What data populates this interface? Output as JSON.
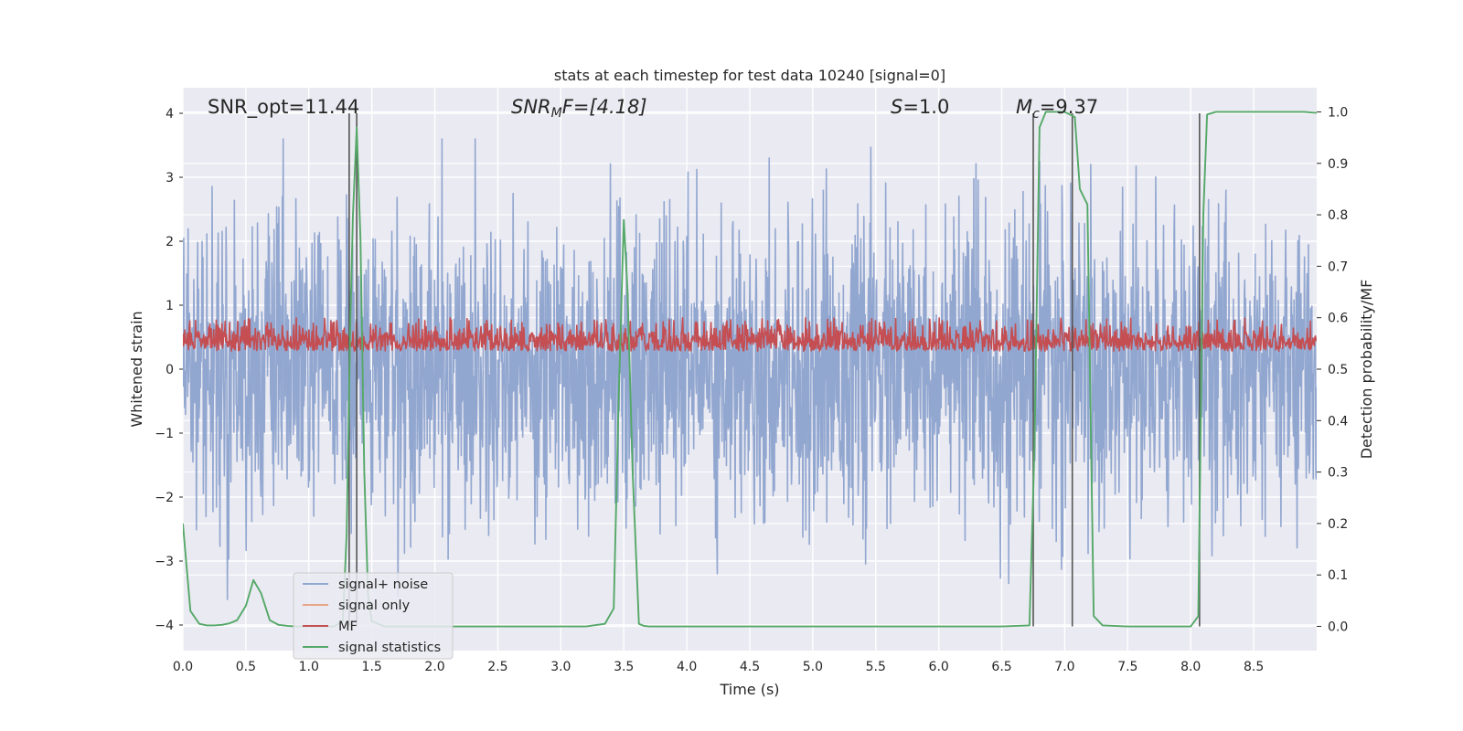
{
  "chart_data": {
    "type": "line",
    "title": "stats at each timestep for test data 10240 [signal=0]",
    "xlabel": "Time (s)",
    "ylabel": "Whitened strain",
    "ylabel_right": "Detection probability/MF",
    "xlim": [
      0.0,
      9.0
    ],
    "ylim": [
      -4.4,
      4.4
    ],
    "ylim_right": [
      -0.047,
      1.047
    ],
    "xticks": [
      "0.0",
      "0.5",
      "1.0",
      "1.5",
      "2.0",
      "2.5",
      "3.0",
      "3.5",
      "4.0",
      "4.5",
      "5.0",
      "5.5",
      "6.0",
      "6.5",
      "7.0",
      "7.5",
      "8.0",
      "8.5"
    ],
    "yticks": [
      "4",
      "3",
      "2",
      "1",
      "0",
      "−1",
      "−2",
      "−3",
      "−4"
    ],
    "yticks_right": [
      "1.0",
      "0.9",
      "0.8",
      "0.7",
      "0.6",
      "0.5",
      "0.4",
      "0.3",
      "0.2",
      "0.1",
      "0.0"
    ],
    "grid": true,
    "legend_position": "lower-left",
    "annotations": [
      {
        "id": "snr-opt",
        "text": "SNR_opt=11.44"
      },
      {
        "id": "snr-mf",
        "base": "SNR",
        "sub": "M",
        "tail": "F=[4.18]"
      },
      {
        "id": "s-stat",
        "base": "S",
        "tail": "=1.0"
      },
      {
        "id": "mc",
        "base": "M",
        "sub": "c",
        "tail": "=9.37"
      }
    ],
    "series": [
      {
        "name": "signal+ noise",
        "color": "#91a6cf",
        "style": "noise band, amplitude about ±2.2 with spikes to ±3.6"
      },
      {
        "name": "signal only",
        "color": "#e8a487",
        "values": []
      },
      {
        "name": "MF",
        "color": "#c44e52",
        "axis": "right",
        "range_approx": [
          0.51,
          0.6
        ]
      },
      {
        "name": "signal statistics",
        "color": "#55a868",
        "axis": "right",
        "x": [
          0.0,
          0.06,
          0.13,
          0.19,
          0.25,
          0.31,
          0.37,
          0.43,
          0.5,
          0.56,
          0.62,
          0.69,
          0.76,
          0.83,
          0.9,
          1.0,
          1.1,
          1.2,
          1.27,
          1.3,
          1.33,
          1.35,
          1.38,
          1.41,
          1.44,
          1.47,
          1.5,
          1.6,
          2.0,
          2.5,
          3.0,
          3.2,
          3.35,
          3.42,
          3.46,
          3.5,
          3.53,
          3.57,
          3.62,
          3.66,
          3.7,
          4.0,
          5.0,
          6.0,
          6.5,
          6.72,
          6.76,
          6.8,
          6.85,
          7.0,
          7.08,
          7.12,
          7.18,
          7.23,
          7.3,
          7.5,
          7.8,
          8.0,
          8.06,
          8.1,
          8.13,
          8.2,
          8.5,
          8.9,
          9.0
        ],
        "values": [
          0.2,
          0.03,
          0.005,
          0.002,
          0.002,
          0.003,
          0.006,
          0.012,
          0.04,
          0.09,
          0.065,
          0.012,
          0.003,
          0.001,
          0.0,
          0.0,
          0.0,
          0.0,
          0.01,
          0.18,
          0.6,
          0.8,
          0.97,
          0.75,
          0.3,
          0.06,
          0.01,
          0.0,
          0.0,
          0.0,
          0.0,
          0.0,
          0.005,
          0.035,
          0.45,
          0.79,
          0.65,
          0.3,
          0.005,
          0.001,
          0.0,
          0.0,
          0.0,
          0.0,
          0.0,
          0.002,
          0.35,
          0.97,
          1.0,
          1.0,
          0.99,
          0.85,
          0.82,
          0.02,
          0.002,
          0.0,
          0.0,
          0.0,
          0.02,
          0.8,
          0.995,
          1.0,
          1.0,
          1.0,
          0.998
        ]
      }
    ],
    "event_markers_x": [
      1.32,
      1.38,
      6.75,
      7.06,
      8.07
    ]
  }
}
